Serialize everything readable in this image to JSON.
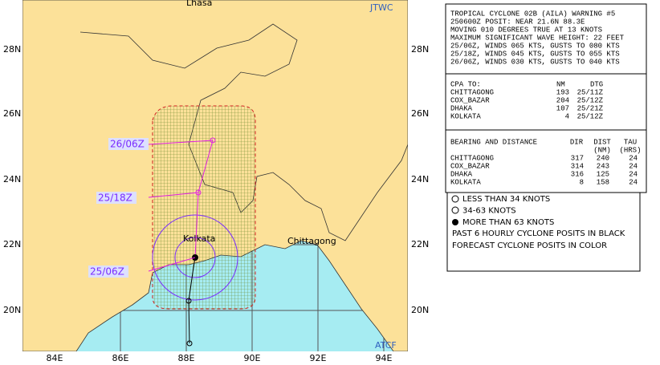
{
  "map": {
    "agency": "JTWC",
    "footer": "ATCF",
    "places": [
      "Lhasa",
      "Kolkata",
      "Chittagong"
    ],
    "lat_labels": [
      "28N",
      "26N",
      "24N",
      "22N",
      "20N"
    ],
    "lon_labels": [
      "84E",
      "86E",
      "88E",
      "90E",
      "92E",
      "94E"
    ],
    "forecast_labels": [
      "26/06Z",
      "25/18Z",
      "25/06Z"
    ]
  },
  "warning": {
    "lines": [
      "TROPICAL CYCLONE 02B (AILA) WARNING #5",
      "250600Z POSIT: NEAR 21.6N 88.3E",
      "MOVING 010 DEGREES TRUE AT 13 KNOTS",
      "MAXIMUM SIGNIFICANT WAVE HEIGHT: 22 FEET",
      "25/06Z, WINDS 065 KTS, GUSTS TO 080 KTS",
      "25/18Z, WINDS 045 KTS, GUSTS TO 055 KTS",
      "26/06Z, WINDS 030 KTS, GUSTS TO 040 KTS"
    ]
  },
  "cpa": {
    "header": [
      "CPA TO:",
      "NM",
      "DTG"
    ],
    "rows": [
      [
        "CHITTAGONG",
        "193",
        "25/11Z"
      ],
      [
        "COX_BAZAR",
        "204",
        "25/12Z"
      ],
      [
        "DHAKA",
        "107",
        "25/21Z"
      ],
      [
        "KOLKATA",
        "4",
        "25/12Z"
      ]
    ]
  },
  "bearing": {
    "header": [
      "BEARING AND DISTANCE",
      "DIR",
      "DIST",
      "TAU"
    ],
    "subheader": [
      "(NM)",
      "(HRS)"
    ],
    "rows": [
      [
        "CHITTAGONG",
        "317",
        "240",
        "24"
      ],
      [
        "COX_BAZAR",
        "314",
        "243",
        "24"
      ],
      [
        "DHAKA",
        "316",
        "125",
        "24"
      ],
      [
        "KOLKATA",
        "8",
        "158",
        "24"
      ]
    ]
  },
  "legend": {
    "items": [
      "LESS THAN 34 KNOTS",
      "34-63 KNOTS",
      "MORE THAN 63 KNOTS"
    ],
    "notes": [
      "PAST 6 HOURLY CYCLONE POSITS IN BLACK",
      "FORECAST CYCLONE POSITS IN COLOR"
    ]
  }
}
